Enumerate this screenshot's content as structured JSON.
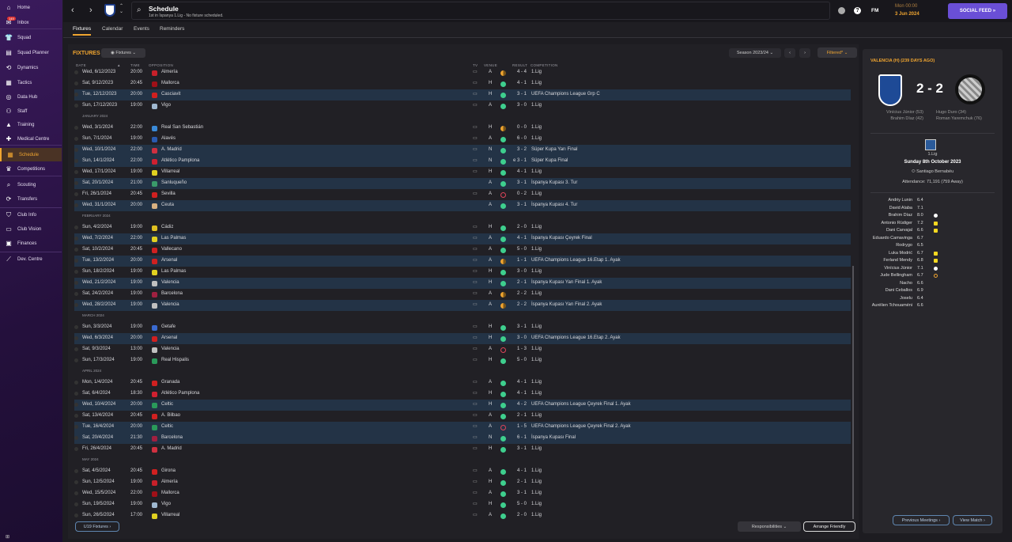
{
  "sidebar": {
    "items": [
      {
        "label": "Home",
        "icon": "home-icon"
      },
      {
        "label": "Inbox",
        "icon": "inbox-icon",
        "badge": "149"
      },
      {
        "label": "Squad",
        "icon": "shirt-icon"
      },
      {
        "label": "Squad Planner",
        "icon": "clipboard-icon"
      },
      {
        "label": "Dynamics",
        "icon": "dynamics-icon"
      },
      {
        "label": "Tactics",
        "icon": "tactics-icon"
      },
      {
        "label": "Data Hub",
        "icon": "data-hub-icon"
      },
      {
        "label": "Staff",
        "icon": "staff-icon"
      },
      {
        "label": "Training",
        "icon": "training-icon"
      },
      {
        "label": "Medical Centre",
        "icon": "medical-icon"
      },
      {
        "label": "Schedule",
        "icon": "calendar-icon",
        "active": true
      },
      {
        "label": "Competitions",
        "icon": "trophy-icon"
      },
      {
        "label": "Scouting",
        "icon": "search-icon"
      },
      {
        "label": "Transfers",
        "icon": "transfers-icon"
      },
      {
        "label": "Club Info",
        "icon": "shield-icon"
      },
      {
        "label": "Club Vision",
        "icon": "briefcase-icon"
      },
      {
        "label": "Finances",
        "icon": "money-icon"
      },
      {
        "label": "Dev. Centre",
        "icon": "dev-centre-icon"
      }
    ],
    "footer": "⊞"
  },
  "header": {
    "title": "Schedule",
    "subtitle": "1st in İspanya 1.Lig - No fixture scheduled.",
    "fm": "FM",
    "time": "Mon 00:00",
    "date": "3 Jun 2024",
    "social": "SOCIAL FEED"
  },
  "tabs": [
    "Fixtures",
    "Calendar",
    "Events",
    "Reminders"
  ],
  "fixtures": {
    "title": "FIXTURES",
    "view": "Fixtures",
    "season": "Season 2023/24",
    "filter": "Filtered*",
    "columns": {
      "date": "DATE",
      "time": "TIME",
      "opposition": "OPPOSITION",
      "tv": "TV",
      "venue": "VENUE",
      "result": "RESULT",
      "competition": "COMPETITION"
    },
    "u19": "U19 Fixtures",
    "responsibilities": "Responsibilities",
    "arrange": "Arrange Friendly",
    "colors": {
      "win": "#3ecf8e",
      "draw": "#f0a530",
      "loss": "#e0445a",
      "highlight": "#233346",
      "accent": "#f0a530"
    },
    "rows": [
      {
        "date": "Wed, 6/12/2023",
        "time": "20:00",
        "opp": "Almería",
        "tv": true,
        "venue": "A",
        "res": "draw",
        "score": "4 - 4",
        "comp": "1.Lig",
        "c": "#c8202a"
      },
      {
        "date": "Sat, 9/12/2023",
        "time": "20:45",
        "opp": "Mallorca",
        "tv": true,
        "venue": "H",
        "res": "win",
        "score": "4 - 1",
        "comp": "1.Lig",
        "c": "#a01018"
      },
      {
        "date": "Tue, 12/12/2023",
        "time": "20:00",
        "opp": "Casciavit",
        "tv": true,
        "venue": "H",
        "res": "win",
        "score": "3 - 1",
        "comp": "UEFA Champions League Grp C",
        "hl": true,
        "c": "#d02020"
      },
      {
        "date": "Sun, 17/12/2023",
        "time": "19:00",
        "opp": "Vigo",
        "tv": true,
        "venue": "A",
        "res": "win",
        "score": "3 - 0",
        "comp": "1.Lig",
        "c": "#9fb8d0"
      },
      {
        "month": "JANUARY 2024"
      },
      {
        "date": "Wed, 3/1/2024",
        "time": "22:00",
        "opp": "Real San Sebastián",
        "tv": true,
        "venue": "H",
        "res": "draw",
        "score": "0 - 0",
        "comp": "1.Lig",
        "c": "#3a8ad8"
      },
      {
        "date": "Sun, 7/1/2024",
        "time": "19:00",
        "opp": "Alavés",
        "tv": true,
        "venue": "A",
        "res": "win",
        "score": "6 - 0",
        "comp": "1.Lig",
        "c": "#2a5ab0"
      },
      {
        "date": "Wed, 10/1/2024",
        "time": "22:00",
        "opp": "A. Madrid",
        "tv": true,
        "venue": "N",
        "res": "win",
        "score": "3 - 2",
        "comp": "Süper Kupa Yarı Final",
        "hl": true,
        "c": "#d03040"
      },
      {
        "date": "Sun, 14/1/2024",
        "time": "22:00",
        "opp": "Atlético Pamplona",
        "tv": true,
        "venue": "N",
        "res": "win",
        "score": "e 3 - 1",
        "comp": "Süper Kupa Final",
        "hl": true,
        "c": "#d02030"
      },
      {
        "date": "Wed, 17/1/2024",
        "time": "19:00",
        "opp": "Villarreal",
        "tv": true,
        "venue": "H",
        "res": "win",
        "score": "4 - 1",
        "comp": "1.Lig",
        "c": "#e0d020"
      },
      {
        "date": "Sat, 20/1/2024",
        "time": "21:00",
        "opp": "Sanluqueño",
        "tv": false,
        "venue": "A",
        "res": "win",
        "score": "3 - 1",
        "comp": "İspanya Kupası 3. Tur",
        "hl": true,
        "c": "#3a9a6a"
      },
      {
        "date": "Fri, 26/1/2024",
        "time": "20:45",
        "opp": "Sevilla",
        "tv": true,
        "venue": "A",
        "res": "loss",
        "score": "0 - 2",
        "comp": "1.Lig",
        "c": "#d02020"
      },
      {
        "date": "Wed, 31/1/2024",
        "time": "20:00",
        "opp": "Ceuta",
        "tv": false,
        "venue": "A",
        "res": "win",
        "score": "3 - 1",
        "comp": "İspanya Kupası 4. Tur",
        "hl": true,
        "c": "#d8b080"
      },
      {
        "month": "FEBRUARY 2024"
      },
      {
        "date": "Sun, 4/2/2024",
        "time": "19:00",
        "opp": "Cádiz",
        "tv": true,
        "venue": "H",
        "res": "win",
        "score": "2 - 0",
        "comp": "1.Lig",
        "c": "#e0c020"
      },
      {
        "date": "Wed, 7/2/2024",
        "time": "22:00",
        "opp": "Las Palmas",
        "tv": true,
        "venue": "A",
        "res": "win",
        "score": "4 - 1",
        "comp": "İspanya Kupası Çeyrek Final",
        "hl": true,
        "c": "#e0d020"
      },
      {
        "date": "Sat, 10/2/2024",
        "time": "20:45",
        "opp": "Vallecano",
        "tv": true,
        "venue": "A",
        "res": "win",
        "score": "5 - 0",
        "comp": "1.Lig",
        "c": "#d02020"
      },
      {
        "date": "Tue, 13/2/2024",
        "time": "20:00",
        "opp": "Arsenal",
        "tv": true,
        "venue": "A",
        "res": "draw",
        "score": "1 - 1",
        "comp": "UEFA Champions League 16.Etap 1. Ayak",
        "hl": true,
        "c": "#d02020"
      },
      {
        "date": "Sun, 18/2/2024",
        "time": "19:00",
        "opp": "Las Palmas",
        "tv": true,
        "venue": "H",
        "res": "win",
        "score": "3 - 0",
        "comp": "1.Lig",
        "c": "#e0d020"
      },
      {
        "date": "Wed, 21/2/2024",
        "time": "19:00",
        "opp": "Valencia",
        "tv": true,
        "venue": "H",
        "res": "win",
        "score": "2 - 1",
        "comp": "İspanya Kupası Yarı Final 1. Ayak",
        "hl": true,
        "c": "#c0c0c0"
      },
      {
        "date": "Sat, 24/2/2024",
        "time": "19:00",
        "opp": "Barcelona",
        "tv": true,
        "venue": "A",
        "res": "draw",
        "score": "2 - 2",
        "comp": "1.Lig",
        "c": "#a02040"
      },
      {
        "date": "Wed, 28/2/2024",
        "time": "19:00",
        "opp": "Valencia",
        "tv": true,
        "venue": "A",
        "res": "draw",
        "score": "2 - 2",
        "comp": "İspanya Kupası Yarı Final 2. Ayak",
        "hl": true,
        "c": "#c0c0c0"
      },
      {
        "month": "MARCH 2024"
      },
      {
        "date": "Sun, 3/3/2024",
        "time": "19:00",
        "opp": "Getafe",
        "tv": true,
        "venue": "H",
        "res": "win",
        "score": "3 - 1",
        "comp": "1.Lig",
        "c": "#3a6ad0"
      },
      {
        "date": "Wed, 6/3/2024",
        "time": "20:00",
        "opp": "Arsenal",
        "tv": true,
        "venue": "H",
        "res": "win",
        "score": "3 - 0",
        "comp": "UEFA Champions League 16.Etap 2. Ayak",
        "hl": true,
        "c": "#d02020"
      },
      {
        "date": "Sat, 9/3/2024",
        "time": "13:00",
        "opp": "Valencia",
        "tv": true,
        "venue": "A",
        "res": "loss",
        "score": "1 - 3",
        "comp": "1.Lig",
        "c": "#c0c0c0"
      },
      {
        "date": "Sun, 17/3/2024",
        "time": "19:00",
        "opp": "Real Hispalis",
        "tv": true,
        "venue": "H",
        "res": "win",
        "score": "5 - 0",
        "comp": "1.Lig",
        "c": "#2a9a5a"
      },
      {
        "month": "APRIL 2024"
      },
      {
        "date": "Mon, 1/4/2024",
        "time": "20:45",
        "opp": "Granada",
        "tv": true,
        "venue": "A",
        "res": "win",
        "score": "4 - 1",
        "comp": "1.Lig",
        "c": "#d02020"
      },
      {
        "date": "Sat, 6/4/2024",
        "time": "18:30",
        "opp": "Atlético Pamplona",
        "tv": true,
        "venue": "H",
        "res": "win",
        "score": "4 - 1",
        "comp": "1.Lig",
        "c": "#d02030"
      },
      {
        "date": "Wed, 10/4/2024",
        "time": "20:00",
        "opp": "Celtic",
        "tv": true,
        "venue": "H",
        "res": "win",
        "score": "4 - 2",
        "comp": "UEFA Champions League Çeyrek Final 1. Ayak",
        "hl": true,
        "c": "#2a9a5a"
      },
      {
        "date": "Sat, 13/4/2024",
        "time": "20:45",
        "opp": "A. Bilbao",
        "tv": true,
        "venue": "A",
        "res": "win",
        "score": "2 - 1",
        "comp": "1.Lig",
        "c": "#d02020"
      },
      {
        "date": "Tue, 16/4/2024",
        "time": "20:00",
        "opp": "Celtic",
        "tv": true,
        "venue": "A",
        "res": "loss",
        "score": "1 - 5",
        "comp": "UEFA Champions League Çeyrek Final 2. Ayak",
        "hl": true,
        "c": "#2a9a5a"
      },
      {
        "date": "Sat, 20/4/2024",
        "time": "21:30",
        "opp": "Barcelona",
        "tv": true,
        "venue": "N",
        "res": "win",
        "score": "6 - 1",
        "comp": "İspanya Kupası Final",
        "hl": true,
        "c": "#a02040"
      },
      {
        "date": "Fri, 26/4/2024",
        "time": "20:45",
        "opp": "A. Madrid",
        "tv": true,
        "venue": "H",
        "res": "win",
        "score": "3 - 1",
        "comp": "1.Lig",
        "c": "#d03040"
      },
      {
        "month": "MAY 2024"
      },
      {
        "date": "Sat, 4/5/2024",
        "time": "20:45",
        "opp": "Girona",
        "tv": true,
        "venue": "A",
        "res": "win",
        "score": "4 - 1",
        "comp": "1.Lig",
        "c": "#d02020"
      },
      {
        "date": "Sun, 12/5/2024",
        "time": "19:00",
        "opp": "Almería",
        "tv": true,
        "venue": "H",
        "res": "win",
        "score": "2 - 1",
        "comp": "1.Lig",
        "c": "#c8202a"
      },
      {
        "date": "Wed, 15/5/2024",
        "time": "22:00",
        "opp": "Mallorca",
        "tv": true,
        "venue": "A",
        "res": "win",
        "score": "3 - 1",
        "comp": "1.Lig",
        "c": "#a01018"
      },
      {
        "date": "Sun, 19/5/2024",
        "time": "19:00",
        "opp": "Vigo",
        "tv": true,
        "venue": "H",
        "res": "win",
        "score": "5 - 0",
        "comp": "1.Lig",
        "c": "#9fb8d0"
      },
      {
        "date": "Sun, 26/5/2024",
        "time": "17:00",
        "opp": "Villarreal",
        "tv": true,
        "venue": "A",
        "res": "win",
        "score": "2 - 0",
        "comp": "1.Lig",
        "c": "#e0d020"
      }
    ]
  },
  "match": {
    "heading": "VALENCIA (H) (239 DAYS AGO)",
    "score": "2 - 2",
    "home_scorers": [
      "Vinícius Júnior (53)",
      "Brahim Díaz (42)"
    ],
    "away_scorers": [
      "Hugo Duro (34)",
      "Roman Yaremchuk (76)"
    ],
    "competition": "1.Lig",
    "date": "Sunday 8th October 2023",
    "stadium": "Santiago Bernabéu",
    "attendance": "Attendance: 71,191 (759 Away)",
    "players": [
      {
        "name": "Andriy Lunin",
        "rating": "6.4"
      },
      {
        "name": "David Alaba",
        "rating": "7.1"
      },
      {
        "name": "Brahim Díaz",
        "rating": "8.0",
        "event": "goal"
      },
      {
        "name": "Antonio Rüdiger",
        "rating": "7.2",
        "event": "yellow"
      },
      {
        "name": "Dani Carvajal",
        "rating": "6.6",
        "event": "yellow"
      },
      {
        "name": "Eduardo Camavinga",
        "rating": "6.7"
      },
      {
        "name": "Rodrygo",
        "rating": "6.5"
      },
      {
        "name": "Luka Modrić",
        "rating": "6.7",
        "event": "yellow"
      },
      {
        "name": "Ferland Mendy",
        "rating": "6.8",
        "event": "yellow"
      },
      {
        "name": "Vinícius Júnior",
        "rating": "7.1",
        "event": "goal"
      },
      {
        "name": "Jude Bellingham",
        "rating": "6.7",
        "event": "assist"
      },
      {
        "name": "Nacho",
        "rating": "6.6"
      },
      {
        "name": "Dani Ceballos",
        "rating": "6.9"
      },
      {
        "name": "Joselu",
        "rating": "6.4"
      },
      {
        "name": "Aurélien Tchouaméni",
        "rating": "6.6"
      }
    ],
    "prev": "Previous Meetings",
    "view": "View Match"
  }
}
